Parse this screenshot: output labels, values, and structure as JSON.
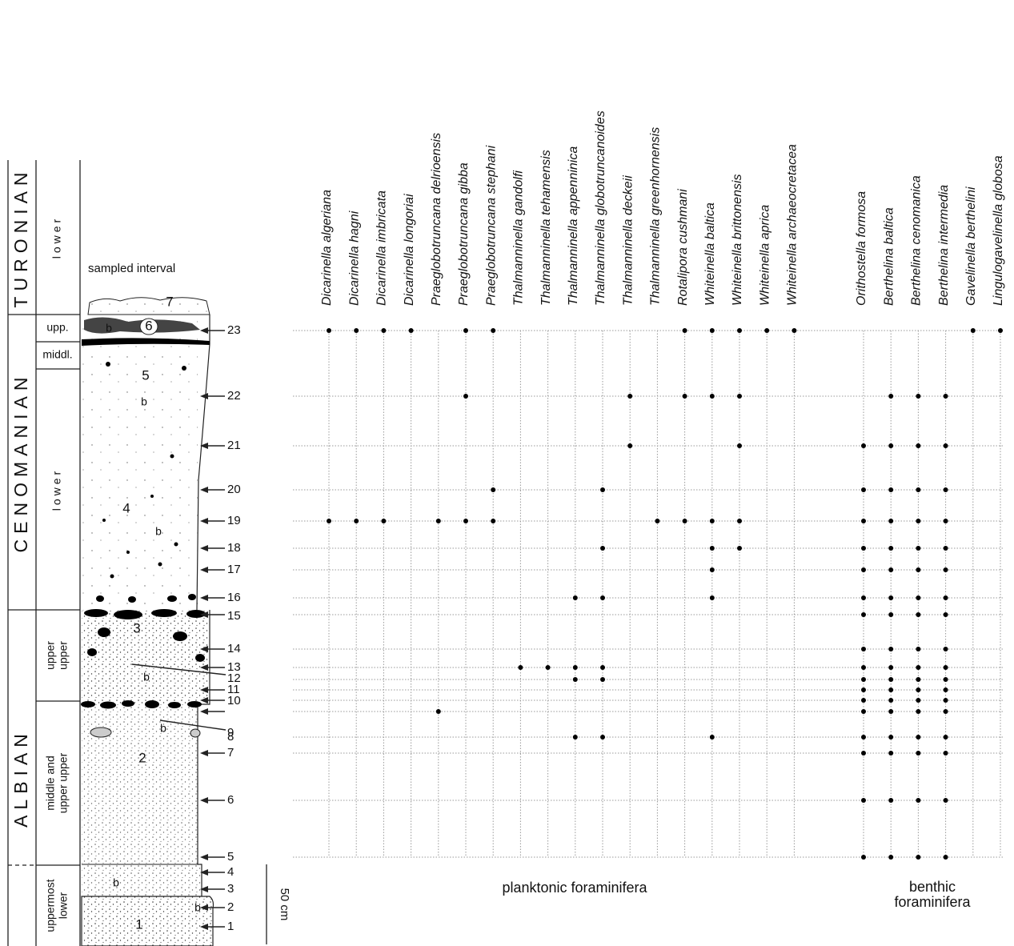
{
  "stratigraphy": {
    "stages": [
      "TURONIAN",
      "CENOMANIAN",
      "ALBIAN"
    ],
    "substages": [
      [
        "lower"
      ],
      [
        "upp."
      ],
      [
        "middl."
      ],
      [
        "lower"
      ],
      [
        "upper",
        "upper"
      ],
      [
        "middle and",
        "upper upper"
      ],
      [
        "uppermost",
        "lower"
      ]
    ],
    "column_label": "sampled interval",
    "beds": [
      "1",
      "2",
      "3",
      "4",
      "5",
      "6",
      "7"
    ],
    "markers": [
      "b",
      "b",
      "b",
      "b",
      "b",
      "b",
      "b"
    ],
    "scale_label": "50 cm"
  },
  "groups": {
    "planktonic": {
      "label": "planktonic foraminifera",
      "species": [
        "Dicarinella algeriana",
        "Dicarinella hagni",
        "Dicarinella imbricata",
        "Dicarinella longoriai",
        "Praeglobotruncana delrioensis",
        "Praeglobotruncana gibba",
        "Praeglobotruncana stephani",
        "Thalmanninella gandolfi",
        "Thalmanninella tehamensis",
        "Thalmanninella appenninica",
        "Thalmanninella globotruncanoides",
        "Thalmanninella deckeii",
        "Thalmanninella greenhornensis",
        "Rotalipora cushmani",
        "Whiteinella baltica",
        "Whiteinella brittonensis",
        "Whiteinella aprica",
        "Whiteinella archaeocretacea"
      ]
    },
    "benthic": {
      "label": "benthic foraminifera",
      "species": [
        "Orithostella formosa",
        "Berthelina baltica",
        "Berthelina cenomanica",
        "Berthelina intermedia",
        "Gavelinella berthelini",
        "Lingulogavelinella globosa"
      ]
    }
  },
  "samples": [
    {
      "label": "1"
    },
    {
      "label": "2"
    },
    {
      "label": "3"
    },
    {
      "label": "4"
    },
    {
      "label": "5",
      "planktonic": [
        0,
        0,
        0,
        0,
        0,
        0,
        0,
        0,
        0,
        0,
        0,
        0,
        0,
        0,
        0,
        0,
        0,
        0
      ],
      "benthic": [
        1,
        1,
        1,
        1,
        0,
        0
      ]
    },
    {
      "label": "6",
      "planktonic": [
        0,
        0,
        0,
        0,
        0,
        0,
        0,
        0,
        0,
        0,
        0,
        0,
        0,
        0,
        0,
        0,
        0,
        0
      ],
      "benthic": [
        1,
        1,
        1,
        1,
        0,
        0
      ]
    },
    {
      "label": "7",
      "planktonic": [
        0,
        0,
        0,
        0,
        0,
        0,
        0,
        0,
        0,
        0,
        0,
        0,
        0,
        0,
        0,
        0,
        0,
        0
      ],
      "benthic": [
        1,
        1,
        1,
        1,
        0,
        0
      ]
    },
    {
      "label": "8",
      "planktonic": [
        0,
        0,
        0,
        0,
        0,
        0,
        0,
        0,
        0,
        1,
        1,
        0,
        0,
        0,
        1,
        0,
        0,
        0
      ],
      "benthic": [
        1,
        1,
        1,
        1,
        0,
        0
      ]
    },
    {
      "label": "9",
      "planktonic": [
        0,
        0,
        0,
        0,
        1,
        0,
        0,
        0,
        0,
        0,
        0,
        0,
        0,
        0,
        0,
        0,
        0,
        0
      ],
      "benthic": [
        1,
        1,
        1,
        1,
        0,
        0
      ]
    },
    {
      "label": "10",
      "planktonic": [
        0,
        0,
        0,
        0,
        0,
        0,
        0,
        0,
        0,
        0,
        0,
        0,
        0,
        0,
        0,
        0,
        0,
        0
      ],
      "benthic": [
        1,
        1,
        1,
        1,
        0,
        0
      ]
    },
    {
      "label": "11",
      "planktonic": [
        0,
        0,
        0,
        0,
        0,
        0,
        0,
        0,
        0,
        0,
        0,
        0,
        0,
        0,
        0,
        0,
        0,
        0
      ],
      "benthic": [
        1,
        1,
        1,
        1,
        0,
        0
      ]
    },
    {
      "label": "12",
      "planktonic": [
        0,
        0,
        0,
        0,
        0,
        0,
        0,
        0,
        0,
        1,
        1,
        0,
        0,
        0,
        0,
        0,
        0,
        0
      ],
      "benthic": [
        1,
        1,
        1,
        1,
        0,
        0
      ]
    },
    {
      "label": "13",
      "planktonic": [
        0,
        0,
        0,
        0,
        0,
        0,
        0,
        1,
        1,
        1,
        1,
        0,
        0,
        0,
        0,
        0,
        0,
        0
      ],
      "benthic": [
        1,
        1,
        1,
        1,
        0,
        0
      ]
    },
    {
      "label": "14",
      "planktonic": [
        0,
        0,
        0,
        0,
        0,
        0,
        0,
        0,
        0,
        0,
        0,
        0,
        0,
        0,
        0,
        0,
        0,
        0
      ],
      "benthic": [
        1,
        1,
        1,
        1,
        0,
        0
      ]
    },
    {
      "label": "15",
      "planktonic": [
        0,
        0,
        0,
        0,
        0,
        0,
        0,
        0,
        0,
        0,
        0,
        0,
        0,
        0,
        0,
        0,
        0,
        0
      ],
      "benthic": [
        1,
        1,
        1,
        1,
        0,
        0
      ]
    },
    {
      "label": "16",
      "planktonic": [
        0,
        0,
        0,
        0,
        0,
        0,
        0,
        0,
        0,
        1,
        1,
        0,
        0,
        0,
        1,
        0,
        0,
        0
      ],
      "benthic": [
        1,
        1,
        1,
        1,
        0,
        0
      ]
    },
    {
      "label": "17",
      "planktonic": [
        0,
        0,
        0,
        0,
        0,
        0,
        0,
        0,
        0,
        0,
        0,
        0,
        0,
        0,
        1,
        0,
        0,
        0
      ],
      "benthic": [
        1,
        1,
        1,
        1,
        0,
        0
      ]
    },
    {
      "label": "18",
      "planktonic": [
        0,
        0,
        0,
        0,
        0,
        0,
        0,
        0,
        0,
        0,
        1,
        0,
        0,
        0,
        1,
        1,
        0,
        0
      ],
      "benthic": [
        1,
        1,
        1,
        1,
        0,
        0
      ]
    },
    {
      "label": "19",
      "planktonic": [
        1,
        1,
        1,
        0,
        1,
        1,
        1,
        0,
        0,
        0,
        0,
        0,
        1,
        1,
        1,
        1,
        0,
        0
      ],
      "benthic": [
        1,
        1,
        1,
        1,
        0,
        0
      ]
    },
    {
      "label": "20",
      "planktonic": [
        0,
        0,
        0,
        0,
        0,
        0,
        1,
        0,
        0,
        0,
        1,
        0,
        0,
        0,
        0,
        0,
        0,
        0
      ],
      "benthic": [
        1,
        1,
        1,
        1,
        0,
        0
      ]
    },
    {
      "label": "21",
      "planktonic": [
        0,
        0,
        0,
        0,
        0,
        0,
        0,
        0,
        0,
        0,
        0,
        1,
        0,
        0,
        0,
        1,
        0,
        0
      ],
      "benthic": [
        1,
        1,
        1,
        1,
        0,
        0
      ]
    },
    {
      "label": "22",
      "planktonic": [
        0,
        0,
        0,
        0,
        0,
        1,
        0,
        0,
        0,
        0,
        0,
        1,
        0,
        1,
        1,
        1,
        0,
        0
      ],
      "benthic": [
        0,
        1,
        1,
        1,
        0,
        0
      ]
    },
    {
      "label": "23",
      "planktonic": [
        1,
        1,
        1,
        1,
        0,
        1,
        1,
        0,
        0,
        0,
        0,
        0,
        0,
        1,
        1,
        1,
        1,
        1
      ],
      "benthic": [
        0,
        0,
        0,
        0,
        1,
        1
      ]
    }
  ]
}
